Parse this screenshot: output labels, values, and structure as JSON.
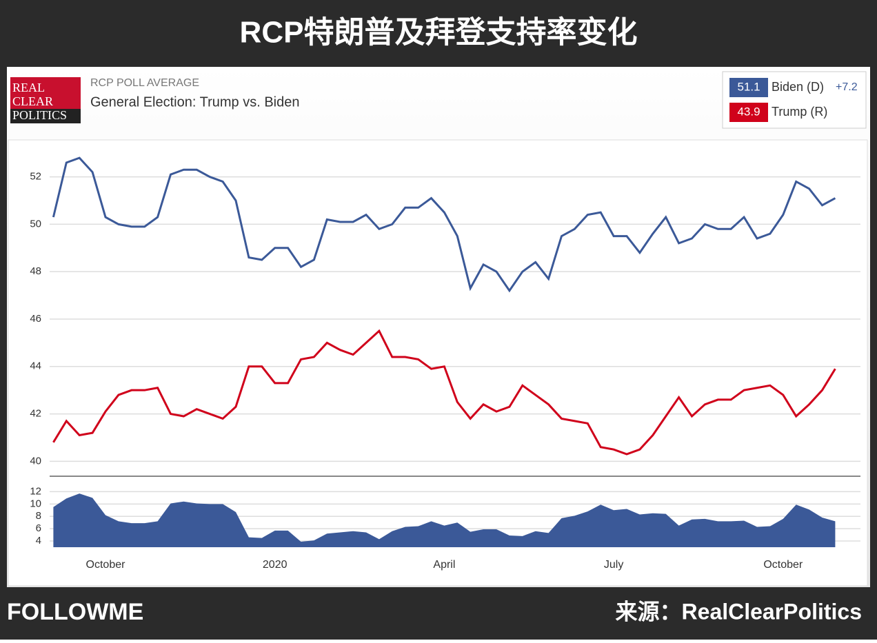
{
  "page": {
    "title": "RCP特朗普及拜登支持率变化",
    "logo": [
      "REAL",
      "CLEAR",
      "POLITICS"
    ],
    "kicker": "RCP POLL AVERAGE",
    "heading": "General Election: Trump vs. Biden",
    "brand": "FOLLOWME",
    "source": "来源：RealClearPolitics"
  },
  "chart_data": [
    {
      "type": "line",
      "ylim": [
        39.4,
        53.5
      ],
      "yticks": [
        40,
        42,
        44,
        46,
        48,
        50,
        52
      ],
      "grid": true,
      "spread_label": "+7.2",
      "series": [
        {
          "name": "Biden (D)",
          "color": "#3b5998",
          "current": 51.1,
          "values": [
            50.3,
            52.6,
            52.8,
            52.2,
            50.3,
            50.0,
            49.9,
            49.9,
            50.3,
            52.1,
            52.3,
            52.3,
            52.0,
            51.8,
            51.0,
            48.6,
            48.5,
            49.0,
            49.0,
            48.2,
            48.5,
            50.2,
            50.1,
            50.1,
            50.4,
            49.8,
            50.0,
            50.7,
            50.7,
            51.1,
            50.5,
            49.5,
            47.3,
            48.3,
            48.0,
            47.2,
            48.0,
            48.4,
            47.7,
            49.5,
            49.8,
            50.4,
            50.5,
            49.5,
            49.5,
            48.8,
            49.6,
            50.3,
            49.2,
            49.4,
            50.0,
            49.8,
            49.8,
            50.3,
            49.4,
            49.6,
            50.4,
            51.8,
            51.5,
            50.8,
            51.1
          ]
        },
        {
          "name": "Trump (R)",
          "color": "#d0021b",
          "current": 43.9,
          "values": [
            40.8,
            41.7,
            41.1,
            41.2,
            42.1,
            42.8,
            43.0,
            43.0,
            43.1,
            42.0,
            41.9,
            42.2,
            42.0,
            41.8,
            42.3,
            44.0,
            44.0,
            43.3,
            43.3,
            44.3,
            44.4,
            45.0,
            44.7,
            44.5,
            45.0,
            45.5,
            44.4,
            44.4,
            44.3,
            43.9,
            44.0,
            42.5,
            41.8,
            42.4,
            42.1,
            42.3,
            43.2,
            42.8,
            42.4,
            41.8,
            41.7,
            41.6,
            40.6,
            40.5,
            40.3,
            40.5,
            41.1,
            41.9,
            42.7,
            41.9,
            42.4,
            42.6,
            42.6,
            43.0,
            43.1,
            43.2,
            42.8,
            41.9,
            42.4,
            43.0,
            43.9
          ]
        }
      ]
    },
    {
      "type": "area",
      "ylim": [
        3,
        13.5
      ],
      "yticks": [
        4,
        6,
        8,
        10,
        12
      ],
      "grid": true,
      "color": "#3b5998",
      "categories": [
        null,
        null,
        null,
        null,
        "October",
        null,
        null,
        null,
        null,
        null,
        null,
        null,
        null,
        null,
        null,
        null,
        null,
        "2020",
        null,
        null,
        null,
        null,
        null,
        null,
        null,
        null,
        null,
        null,
        null,
        null,
        "April",
        null,
        null,
        null,
        null,
        null,
        null,
        null,
        null,
        null,
        null,
        null,
        null,
        "July",
        null,
        null,
        null,
        null,
        null,
        null,
        null,
        null,
        null,
        null,
        null,
        null,
        "October",
        null,
        null,
        null,
        null
      ],
      "values": [
        9.5,
        10.9,
        11.7,
        11.0,
        8.2,
        7.2,
        6.9,
        6.9,
        7.2,
        10.1,
        10.4,
        10.1,
        10.0,
        10.0,
        8.7,
        4.6,
        4.5,
        5.7,
        5.7,
        3.9,
        4.1,
        5.2,
        5.4,
        5.6,
        5.4,
        4.3,
        5.6,
        6.3,
        6.4,
        7.2,
        6.5,
        7.0,
        5.5,
        5.9,
        5.9,
        4.9,
        4.8,
        5.6,
        5.3,
        7.7,
        8.1,
        8.8,
        9.9,
        9.0,
        9.2,
        8.3,
        8.5,
        8.4,
        6.5,
        7.5,
        7.6,
        7.2,
        7.2,
        7.3,
        6.3,
        6.4,
        7.6,
        9.9,
        9.1,
        7.8,
        7.2
      ]
    }
  ]
}
